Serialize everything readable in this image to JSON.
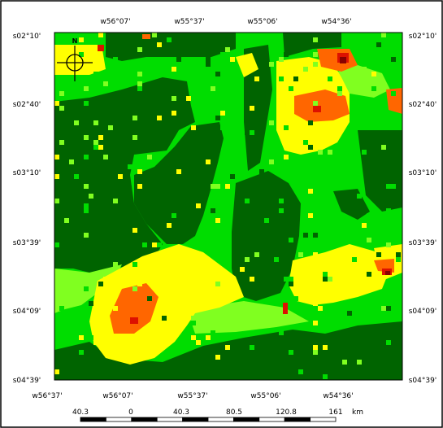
{
  "colors": {
    "dark_green": "#006400",
    "green": "#00dd00",
    "light_green": "#80ff20",
    "yellow": "#ffff00",
    "orange": "#ff6600",
    "red": "#dd1100",
    "dark_red": "#880000",
    "border": "#000000",
    "background": "#ffffff"
  },
  "top_longitudes": [
    "w56°07'",
    "w55°37'",
    "w55°06'",
    "w54°36'"
  ],
  "bottom_longitudes": [
    "w56°37'",
    "w56°07'",
    "w55°37'",
    "w55°06'",
    "w54°36'"
  ],
  "latitudes": [
    "s02°10'",
    "s02°40'",
    "s03°10'",
    "s03°39'",
    "s04°09'",
    "s04°39'"
  ],
  "scale_bar": {
    "labels": [
      "40.3",
      "0",
      "40.3",
      "80.5",
      "120.8",
      "161"
    ],
    "unit": "km"
  },
  "north_arrow_label": "N",
  "icons": [
    "north-arrow-icon",
    "compass-crosshair-icon"
  ]
}
